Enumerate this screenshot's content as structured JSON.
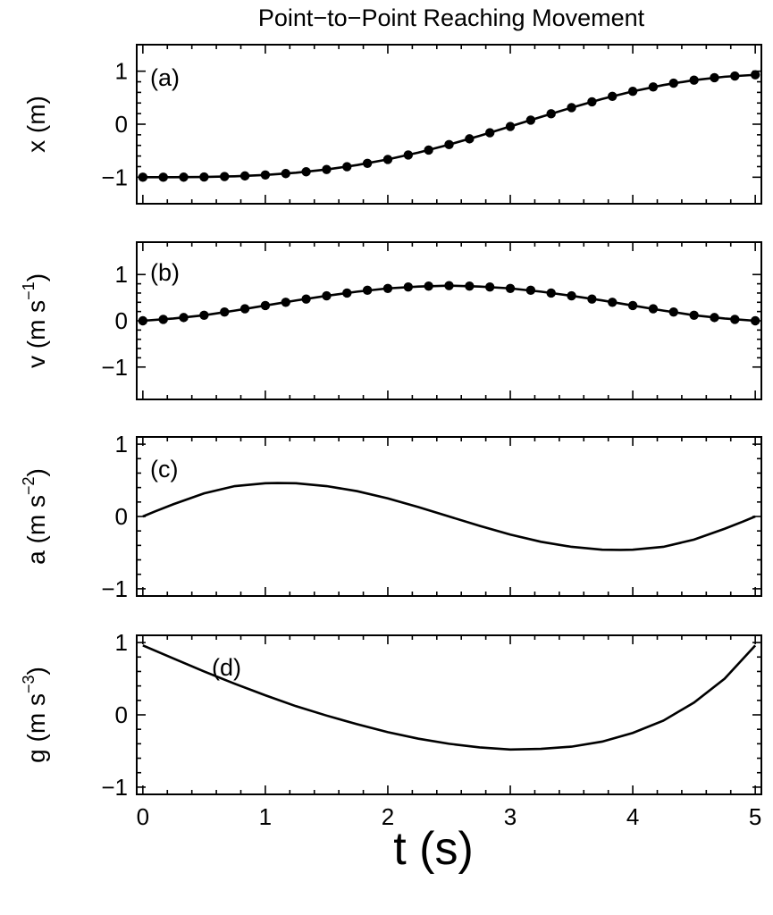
{
  "chart_data": {
    "type": "line",
    "title": "Point−to−Point Reaching Movement",
    "xlabel": "t (s)",
    "xlim": [
      -0.05,
      5.05
    ],
    "xticks": [
      0,
      1,
      2,
      3,
      4,
      5
    ],
    "panels": [
      {
        "id": "x",
        "label": "(a)",
        "ylabel": "x (m)",
        "ylabel_sup": "",
        "ylabel_close": "",
        "ylim": [
          -1.5,
          1.5
        ],
        "yticks": [
          -1,
          0,
          1
        ],
        "markers": true,
        "t": [
          0,
          0.1667,
          0.3333,
          0.5,
          0.6667,
          0.8333,
          1,
          1.1667,
          1.3333,
          1.5,
          1.6667,
          1.8333,
          2,
          2.1667,
          2.3333,
          2.5,
          2.6667,
          2.8333,
          3,
          3.1667,
          3.3333,
          3.5,
          3.6667,
          3.8333,
          4,
          4.1667,
          4.3333,
          4.5,
          4.6667,
          4.8333,
          5
        ],
        "values": [
          -1,
          -0.9998,
          -0.9986,
          -0.9949,
          -0.9876,
          -0.9755,
          -0.9571,
          -0.9313,
          -0.8973,
          -0.854,
          -0.8009,
          -0.7376,
          -0.664,
          -0.5803,
          -0.487,
          -0.3853,
          -0.2761,
          -0.1614,
          -0.0429,
          0.0769,
          0.1962,
          0.3123,
          0.4229,
          0.526,
          0.6197,
          0.7026,
          0.7734,
          0.8316,
          0.877,
          0.9099,
          0.9314
        ],
        "curve_t": [
          0,
          0.25,
          0.5,
          0.75,
          1,
          1.25,
          1.5,
          1.75,
          2,
          2.25,
          2.5,
          2.75,
          3,
          3.25,
          3.5,
          3.75,
          4,
          4.25,
          4.5,
          4.75,
          5
        ],
        "curve": [
          -1,
          -0.9998,
          -0.9949,
          -0.9822,
          -0.9571,
          -0.9155,
          -0.854,
          -0.7701,
          -0.664,
          -0.5348,
          -0.3853,
          -0.219,
          -0.0429,
          0.137,
          0.3123,
          0.4757,
          0.6197,
          0.7385,
          0.8316,
          0.8951,
          0.9314
        ]
      },
      {
        "id": "v",
        "label": "(b)",
        "ylabel": "v (m s",
        "ylabel_sup": "−1",
        "ylabel_close": ")",
        "ylim": [
          -1.7,
          1.7
        ],
        "yticks": [
          -1,
          0,
          1
        ],
        "markers": true,
        "t": [
          0,
          0.1667,
          0.3333,
          0.5,
          0.6667,
          0.8333,
          1,
          1.1667,
          1.3333,
          1.5,
          1.6667,
          1.8333,
          2,
          2.1667,
          2.3333,
          2.5,
          2.6667,
          2.8333,
          3,
          3.1667,
          3.3333,
          3.5,
          3.6667,
          3.8333,
          4,
          4.1667,
          4.3333,
          4.5,
          4.6667,
          4.8333,
          5
        ],
        "values": [
          0,
          0.03,
          0.07,
          0.12,
          0.19,
          0.26,
          0.33,
          0.4,
          0.47,
          0.54,
          0.6,
          0.66,
          0.7,
          0.73,
          0.75,
          0.76,
          0.75,
          0.73,
          0.7,
          0.66,
          0.6,
          0.54,
          0.47,
          0.4,
          0.33,
          0.26,
          0.19,
          0.12,
          0.07,
          0.03,
          0
        ],
        "curve_t": [
          0,
          0.25,
          0.5,
          0.75,
          1,
          1.25,
          1.5,
          1.75,
          2,
          2.25,
          2.5,
          2.75,
          3,
          3.25,
          3.5,
          3.75,
          4,
          4.25,
          4.5,
          4.75,
          5
        ],
        "curve": [
          0,
          0.05,
          0.12,
          0.22,
          0.33,
          0.44,
          0.54,
          0.63,
          0.7,
          0.74,
          0.76,
          0.74,
          0.7,
          0.63,
          0.54,
          0.44,
          0.33,
          0.22,
          0.12,
          0.05,
          0
        ]
      },
      {
        "id": "a",
        "label": "(c)",
        "ylabel": "a (m s",
        "ylabel_sup": "−2",
        "ylabel_close": ")",
        "ylim": [
          -1.1,
          1.1
        ],
        "yticks": [
          -1,
          0,
          1
        ],
        "markers": false,
        "t": [],
        "values": [],
        "curve_t": [
          0,
          0.1,
          0.25,
          0.5,
          0.75,
          1,
          1.1,
          1.25,
          1.5,
          1.75,
          2,
          2.25,
          2.5,
          2.75,
          3,
          3.25,
          3.5,
          3.75,
          3.9,
          4,
          4.25,
          4.5,
          4.75,
          4.9,
          5
        ],
        "curve": [
          0,
          0.07,
          0.17,
          0.32,
          0.42,
          0.46,
          0.463,
          0.46,
          0.42,
          0.35,
          0.25,
          0.13,
          0,
          -0.13,
          -0.25,
          -0.35,
          -0.42,
          -0.46,
          -0.463,
          -0.46,
          -0.42,
          -0.32,
          -0.17,
          -0.07,
          0
        ]
      },
      {
        "id": "g",
        "label": "(d)",
        "ylabel": "g (m s",
        "ylabel_sup": "−3",
        "ylabel_close": ")",
        "ylim": [
          -1.1,
          1.1
        ],
        "yticks": [
          -1,
          0,
          1
        ],
        "markers": false,
        "t": [],
        "values": [],
        "curve_t": [
          0,
          0.25,
          0.5,
          0.75,
          1,
          1.25,
          1.5,
          1.75,
          2,
          2.25,
          2.5,
          2.75,
          3,
          3.25,
          3.5,
          3.75,
          4,
          4.25,
          4.5,
          4.75,
          5
        ],
        "curve": [
          0.96,
          0.78,
          0.6,
          0.43,
          0.27,
          0.12,
          -0.01,
          -0.13,
          -0.24,
          -0.33,
          -0.4,
          -0.45,
          -0.48,
          -0.47,
          -0.44,
          -0.37,
          -0.25,
          -0.08,
          0.17,
          0.5,
          0.96
        ]
      }
    ]
  }
}
